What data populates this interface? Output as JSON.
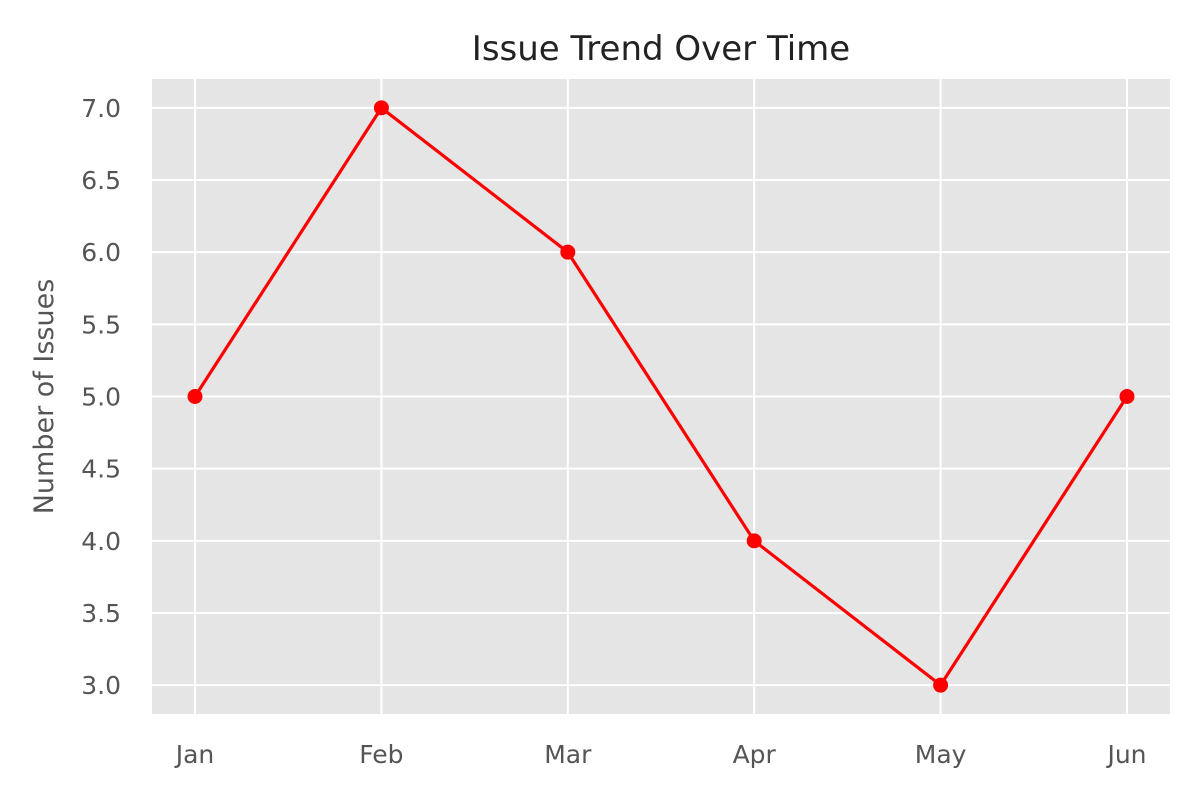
{
  "chart_data": {
    "type": "line",
    "title": "Issue Trend Over Time",
    "xlabel": "",
    "ylabel": "Number of Issues",
    "categories": [
      "Jan",
      "Feb",
      "Mar",
      "Apr",
      "May",
      "Jun"
    ],
    "series": [
      {
        "values": [
          5,
          7,
          6,
          4,
          3,
          5
        ],
        "color": "#ff0000",
        "marker": "circle"
      }
    ],
    "ylim": [
      2.8,
      7.2
    ],
    "yticks": [
      3.0,
      3.5,
      4.0,
      4.5,
      5.0,
      5.5,
      6.0,
      6.5,
      7.0
    ],
    "ytick_labels": [
      "3.0",
      "3.5",
      "4.0",
      "4.5",
      "5.0",
      "5.5",
      "6.0",
      "6.5",
      "7.0"
    ],
    "grid": true,
    "background_color": "#e5e5e5",
    "grid_color": "#ffffff"
  }
}
